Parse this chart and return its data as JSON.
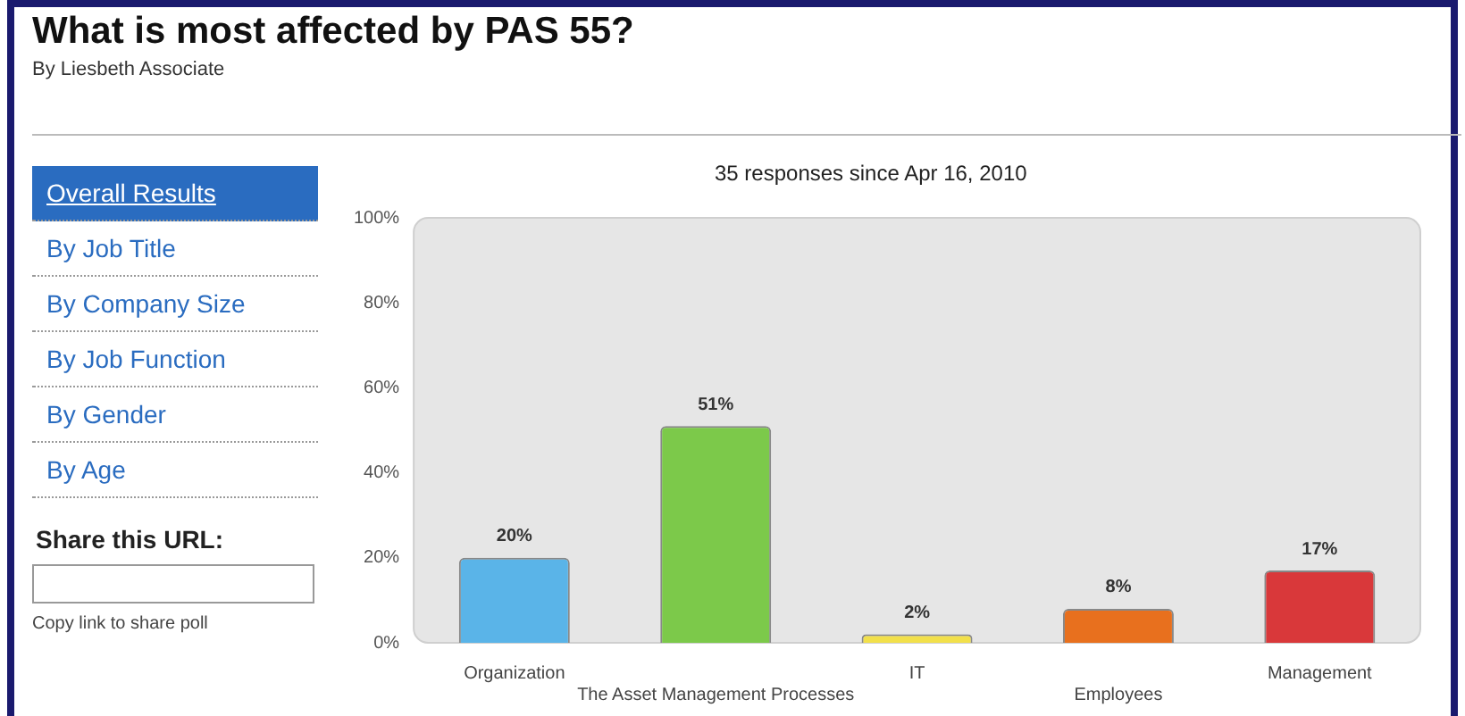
{
  "chart_data": {
    "type": "bar",
    "title": "What is most affected by PAS 55?",
    "subtitle": "By Liesbeth Associate",
    "annotations": [
      "35 responses since Apr 16, 2010",
      "Overall Results",
      "By Job Title",
      "By Company Size",
      "By Job Function",
      "By Gender",
      "By Age",
      "Share this URL:",
      "Copy link to share poll"
    ],
    "categories": [
      "Organization",
      "The Asset Management Processes",
      "IT",
      "Employees",
      "Management"
    ],
    "values": [
      20,
      51,
      2,
      8,
      17
    ],
    "colors": [
      "#5ab4e8",
      "#7cc94a",
      "#f2e04a",
      "#e8701e",
      "#d9383a"
    ],
    "value_labels": [
      "20%",
      "51%",
      "2%",
      "8%",
      "17%"
    ],
    "ylim": [
      0,
      100
    ],
    "yticks": [
      {
        "value": 0,
        "label": "0%"
      },
      {
        "value": 20,
        "label": "20%"
      },
      {
        "value": 40,
        "label": "40%"
      },
      {
        "value": 60,
        "label": "60%"
      },
      {
        "value": 80,
        "label": "80%"
      },
      {
        "value": 100,
        "label": "100%"
      }
    ],
    "grid": false,
    "legend": false
  }
}
